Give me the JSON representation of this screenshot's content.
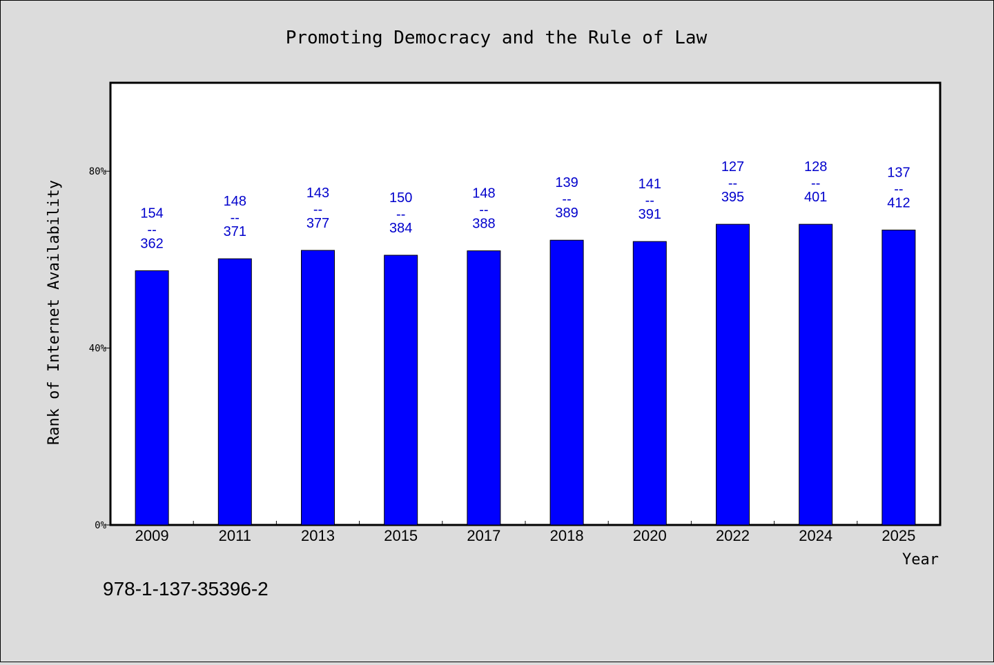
{
  "chart_data": {
    "type": "bar",
    "title": "Promoting Democracy and the Rule of Law",
    "xlabel": "Year",
    "ylabel": "Rank of Internet Availability",
    "ylim": [
      0,
      100
    ],
    "yticks": [
      0,
      40,
      80
    ],
    "ytick_labels": [
      "0%",
      "40%",
      "80%"
    ],
    "categories": [
      "2009",
      "2011",
      "2013",
      "2015",
      "2017",
      "2018",
      "2020",
      "2022",
      "2024",
      "2025"
    ],
    "values": [
      57.5,
      60.2,
      62.1,
      61.0,
      62.0,
      64.4,
      64.1,
      68.0,
      68.0,
      66.7
    ],
    "data_labels": [
      {
        "top": "154",
        "sep": "--",
        "bottom": "362"
      },
      {
        "top": "148",
        "sep": "--",
        "bottom": "371"
      },
      {
        "top": "143",
        "sep": "--",
        "bottom": "377"
      },
      {
        "top": "150",
        "sep": "--",
        "bottom": "384"
      },
      {
        "top": "148",
        "sep": "--",
        "bottom": "388"
      },
      {
        "top": "139",
        "sep": "--",
        "bottom": "389"
      },
      {
        "top": "141",
        "sep": "--",
        "bottom": "391"
      },
      {
        "top": "127",
        "sep": "--",
        "bottom": "395"
      },
      {
        "top": "128",
        "sep": "--",
        "bottom": "401"
      },
      {
        "top": "137",
        "sep": "--",
        "bottom": "412"
      }
    ],
    "grid": false,
    "colors": {
      "bar": "#0000ff",
      "label": "#0000cc",
      "background": "#dcdcdc",
      "plot_background": "#ffffff"
    }
  },
  "footer": {
    "text": "978-1-137-35396-2"
  }
}
